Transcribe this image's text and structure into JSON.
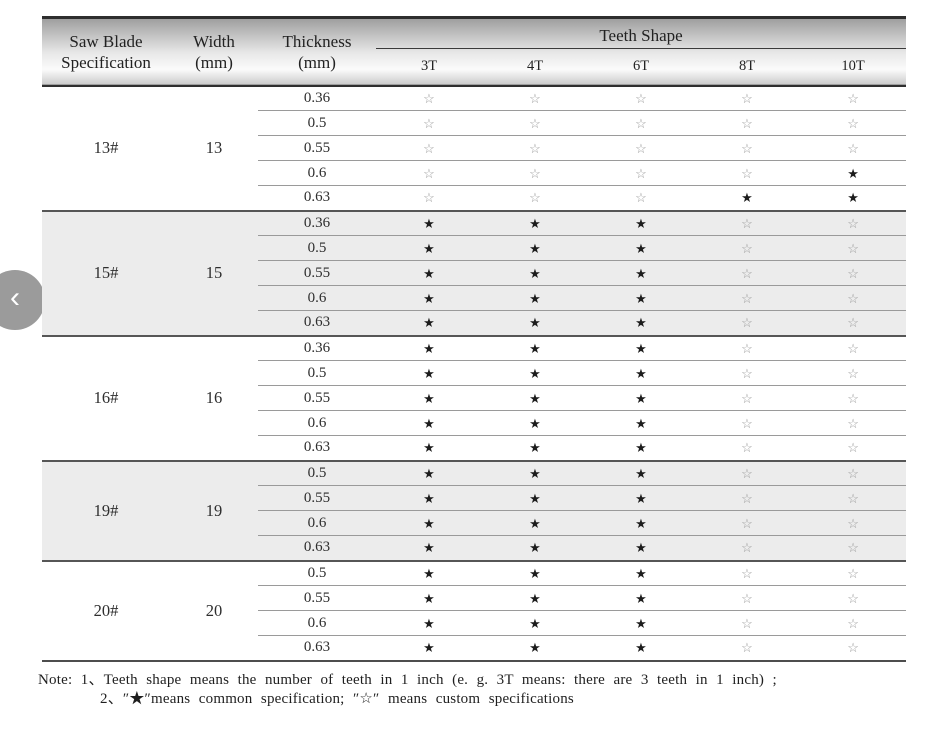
{
  "header": {
    "spec_line1": "Saw Blade",
    "spec_line2": "Specification",
    "width_line1": "Width",
    "width_line2": "(mm)",
    "thickness_line1": "Thickness",
    "thickness_line2": "(mm)",
    "teeth_shape": "Teeth Shape",
    "teeth_columns": [
      "3T",
      "4T",
      "6T",
      "8T",
      "10T"
    ]
  },
  "legend": {
    "common_glyph": "★",
    "custom_glyph": "☆",
    "common_color": "#1c1c1c",
    "custom_color": "#9a9a9a",
    "shaded_row_color": "#ececec"
  },
  "groups": [
    {
      "spec": "13#",
      "width": "13",
      "shaded": false,
      "rows": [
        {
          "thickness": "0.36",
          "marks": [
            "☆",
            "☆",
            "☆",
            "☆",
            "☆"
          ]
        },
        {
          "thickness": "0.5",
          "marks": [
            "☆",
            "☆",
            "☆",
            "☆",
            "☆"
          ]
        },
        {
          "thickness": "0.55",
          "marks": [
            "☆",
            "☆",
            "☆",
            "☆",
            "☆"
          ]
        },
        {
          "thickness": "0.6",
          "marks": [
            "☆",
            "☆",
            "☆",
            "☆",
            "★"
          ]
        },
        {
          "thickness": "0.63",
          "marks": [
            "☆",
            "☆",
            "☆",
            "★",
            "★"
          ]
        }
      ]
    },
    {
      "spec": "15#",
      "width": "15",
      "shaded": true,
      "rows": [
        {
          "thickness": "0.36",
          "marks": [
            "★",
            "★",
            "★",
            "☆",
            "☆"
          ]
        },
        {
          "thickness": "0.5",
          "marks": [
            "★",
            "★",
            "★",
            "☆",
            "☆"
          ]
        },
        {
          "thickness": "0.55",
          "marks": [
            "★",
            "★",
            "★",
            "☆",
            "☆"
          ]
        },
        {
          "thickness": "0.6",
          "marks": [
            "★",
            "★",
            "★",
            "☆",
            "☆"
          ]
        },
        {
          "thickness": "0.63",
          "marks": [
            "★",
            "★",
            "★",
            "☆",
            "☆"
          ]
        }
      ]
    },
    {
      "spec": "16#",
      "width": "16",
      "shaded": false,
      "rows": [
        {
          "thickness": "0.36",
          "marks": [
            "★",
            "★",
            "★",
            "☆",
            "☆"
          ]
        },
        {
          "thickness": "0.5",
          "marks": [
            "★",
            "★",
            "★",
            "☆",
            "☆"
          ]
        },
        {
          "thickness": "0.55",
          "marks": [
            "★",
            "★",
            "★",
            "☆",
            "☆"
          ]
        },
        {
          "thickness": "0.6",
          "marks": [
            "★",
            "★",
            "★",
            "☆",
            "☆"
          ]
        },
        {
          "thickness": "0.63",
          "marks": [
            "★",
            "★",
            "★",
            "☆",
            "☆"
          ]
        }
      ]
    },
    {
      "spec": "19#",
      "width": "19",
      "shaded": true,
      "rows": [
        {
          "thickness": "0.5",
          "marks": [
            "★",
            "★",
            "★",
            "☆",
            "☆"
          ]
        },
        {
          "thickness": "0.55",
          "marks": [
            "★",
            "★",
            "★",
            "☆",
            "☆"
          ]
        },
        {
          "thickness": "0.6",
          "marks": [
            "★",
            "★",
            "★",
            "☆",
            "☆"
          ]
        },
        {
          "thickness": "0.63",
          "marks": [
            "★",
            "★",
            "★",
            "☆",
            "☆"
          ]
        }
      ]
    },
    {
      "spec": "20#",
      "width": "20",
      "shaded": false,
      "rows": [
        {
          "thickness": "0.5",
          "marks": [
            "★",
            "★",
            "★",
            "☆",
            "☆"
          ]
        },
        {
          "thickness": "0.55",
          "marks": [
            "★",
            "★",
            "★",
            "☆",
            "☆"
          ]
        },
        {
          "thickness": "0.6",
          "marks": [
            "★",
            "★",
            "★",
            "☆",
            "☆"
          ]
        },
        {
          "thickness": "0.63",
          "marks": [
            "★",
            "★",
            "★",
            "☆",
            "☆"
          ]
        }
      ]
    }
  ],
  "note": {
    "line1": "Note: 1、Teeth shape means the number of teeth in 1 inch (e. g.  3T  means: there are 3 teeth in 1 inch) ;",
    "line2": "2、″★″means common specification;  ″☆″ means custom specifications"
  },
  "carousel": {
    "prev_icon": "‹"
  }
}
